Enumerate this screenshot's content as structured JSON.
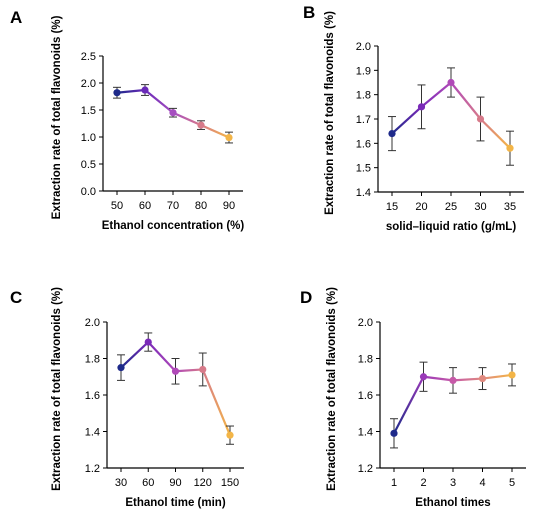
{
  "chart_data": [
    {
      "panel": "A",
      "type": "line",
      "xlabel": "Ethanol concentration (%)",
      "ylabel": "Extraction rate of total flavonoids (%)",
      "categories": [
        "50",
        "60",
        "70",
        "80",
        "90"
      ],
      "values": [
        1.82,
        1.87,
        1.45,
        1.22,
        0.99
      ],
      "errors": [
        0.1,
        0.1,
        0.08,
        0.08,
        0.1
      ],
      "ylim": [
        0.0,
        2.5
      ],
      "yticks": [
        "0.0",
        "0.5",
        "1.0",
        "1.5",
        "2.0",
        "2.5"
      ],
      "grid": false,
      "point_colors": [
        "#1e2a8a",
        "#6a2ab8",
        "#a64fc0",
        "#d77a8a",
        "#f3b547"
      ]
    },
    {
      "panel": "B",
      "type": "line",
      "xlabel": "solid–liquid ratio (g/mL)",
      "ylabel": "Extraction rate of total flavonoids (%)",
      "categories": [
        "15",
        "20",
        "25",
        "30",
        "35"
      ],
      "values": [
        1.64,
        1.75,
        1.85,
        1.7,
        1.58
      ],
      "errors": [
        0.07,
        0.09,
        0.06,
        0.09,
        0.07
      ],
      "ylim": [
        1.4,
        2.0
      ],
      "yticks": [
        "1.4",
        "1.5",
        "1.6",
        "1.7",
        "1.8",
        "1.9",
        "2.0"
      ],
      "grid": false,
      "point_colors": [
        "#1e2a8a",
        "#7a2ab8",
        "#b04ab8",
        "#d77a8a",
        "#f3b547"
      ]
    },
    {
      "panel": "C",
      "type": "line",
      "xlabel": "Ethanol time (min)",
      "ylabel": "Extraction rate of total flavonoids (%)",
      "categories": [
        "30",
        "60",
        "90",
        "120",
        "150"
      ],
      "values": [
        1.75,
        1.89,
        1.73,
        1.74,
        1.38
      ],
      "errors": [
        0.07,
        0.05,
        0.07,
        0.09,
        0.05
      ],
      "ylim": [
        1.2,
        2.0
      ],
      "yticks": [
        "1.2",
        "1.4",
        "1.6",
        "1.8",
        "2.0"
      ],
      "grid": false,
      "point_colors": [
        "#1e2a8a",
        "#7a2ab8",
        "#b04ab8",
        "#d77a8a",
        "#f3b547"
      ]
    },
    {
      "panel": "D",
      "type": "line",
      "xlabel": "Ethanol times",
      "ylabel": "Extraction rate of total flavonoids (%)",
      "categories": [
        "1",
        "2",
        "3",
        "4",
        "5"
      ],
      "values": [
        1.39,
        1.7,
        1.68,
        1.69,
        1.71
      ],
      "errors": [
        0.08,
        0.08,
        0.07,
        0.06,
        0.06
      ],
      "ylim": [
        1.2,
        2.0
      ],
      "yticks": [
        "1.2",
        "1.4",
        "1.6",
        "1.8",
        "2.0"
      ],
      "grid": false,
      "point_colors": [
        "#1e2a8a",
        "#9a3ab8",
        "#c65aa8",
        "#e08a80",
        "#f3b547"
      ]
    }
  ]
}
